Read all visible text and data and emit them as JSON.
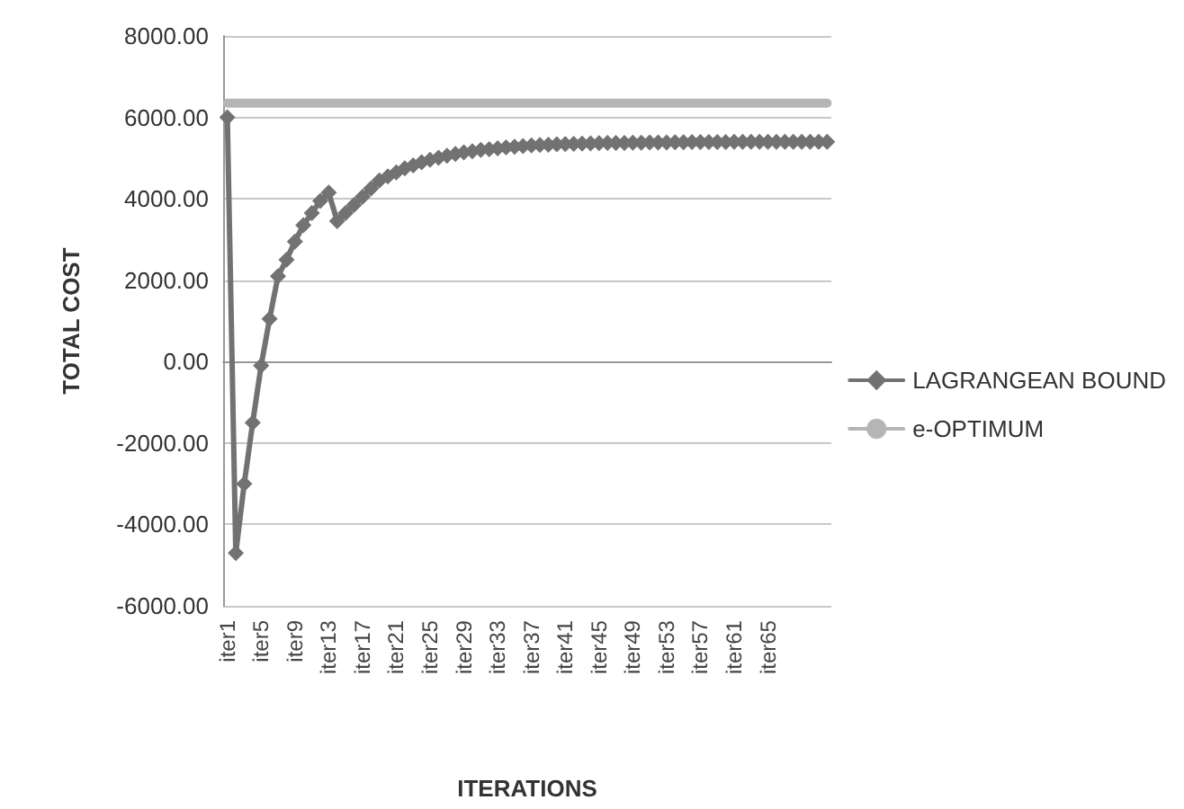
{
  "chart_data": {
    "type": "line",
    "xlabel": "ITERATIONS",
    "ylabel": "TOTAL COST",
    "categories": [
      "iter1",
      null,
      null,
      null,
      "iter5",
      null,
      null,
      null,
      "iter9",
      null,
      null,
      null,
      "iter13",
      null,
      null,
      null,
      "iter17",
      null,
      null,
      null,
      "iter21",
      null,
      null,
      null,
      "iter25",
      null,
      null,
      null,
      "iter29",
      null,
      null,
      null,
      "iter33",
      null,
      null,
      null,
      "iter37",
      null,
      null,
      null,
      "iter41",
      null,
      null,
      null,
      "iter45",
      null,
      null,
      null,
      "iter49",
      null,
      null,
      null,
      "iter53",
      null,
      null,
      null,
      "iter57",
      null,
      null,
      null,
      "iter61",
      null,
      null,
      null,
      "iter65",
      null,
      null,
      null,
      null,
      null,
      null,
      null
    ],
    "series": [
      {
        "name": "LAGRANGEAN BOUND",
        "color": "#727272",
        "marker": "diamond",
        "values": [
          6000,
          -4700,
          -3000,
          -1500,
          -100,
          1050,
          2100,
          2500,
          2950,
          3350,
          3650,
          3950,
          4150,
          3450,
          3650,
          3850,
          4050,
          4250,
          4450,
          4550,
          4650,
          4750,
          4820,
          4900,
          4960,
          5010,
          5060,
          5100,
          5140,
          5170,
          5200,
          5220,
          5240,
          5260,
          5280,
          5295,
          5310,
          5320,
          5330,
          5340,
          5345,
          5350,
          5355,
          5360,
          5365,
          5370,
          5372,
          5375,
          5378,
          5380,
          5382,
          5384,
          5386,
          5388,
          5390,
          5392,
          5394,
          5395,
          5396,
          5397,
          5398,
          5399,
          5400,
          5400,
          5400,
          5400,
          5400,
          5400,
          5400,
          5400,
          5400,
          5400
        ]
      },
      {
        "name": "e-OPTIMUM",
        "color": "#b5b5b5",
        "marker": "none",
        "values": [
          6350,
          6350,
          6350,
          6350,
          6350,
          6350,
          6350,
          6350,
          6350,
          6350,
          6350,
          6350,
          6350,
          6350,
          6350,
          6350,
          6350,
          6350,
          6350,
          6350,
          6350,
          6350,
          6350,
          6350,
          6350,
          6350,
          6350,
          6350,
          6350,
          6350,
          6350,
          6350,
          6350,
          6350,
          6350,
          6350,
          6350,
          6350,
          6350,
          6350,
          6350,
          6350,
          6350,
          6350,
          6350,
          6350,
          6350,
          6350,
          6350,
          6350,
          6350,
          6350,
          6350,
          6350,
          6350,
          6350,
          6350,
          6350,
          6350,
          6350,
          6350,
          6350,
          6350,
          6350,
          6350,
          6350,
          6350,
          6350,
          6350,
          6350,
          6350,
          6350
        ]
      }
    ],
    "ylim": [
      -6000,
      8000
    ],
    "yticks": [
      {
        "value": -6000,
        "label": "-6000.00"
      },
      {
        "value": -4000,
        "label": "-4000.00"
      },
      {
        "value": -2000,
        "label": "-2000.00"
      },
      {
        "value": 0,
        "label": "0.00"
      },
      {
        "value": 2000,
        "label": "2000.00"
      },
      {
        "value": 4000,
        "label": "4000.00"
      },
      {
        "value": 6000,
        "label": "6000.00"
      },
      {
        "value": 8000,
        "label": "8000.00"
      }
    ],
    "grid": "y",
    "legend": "right",
    "line_style": "solid"
  }
}
